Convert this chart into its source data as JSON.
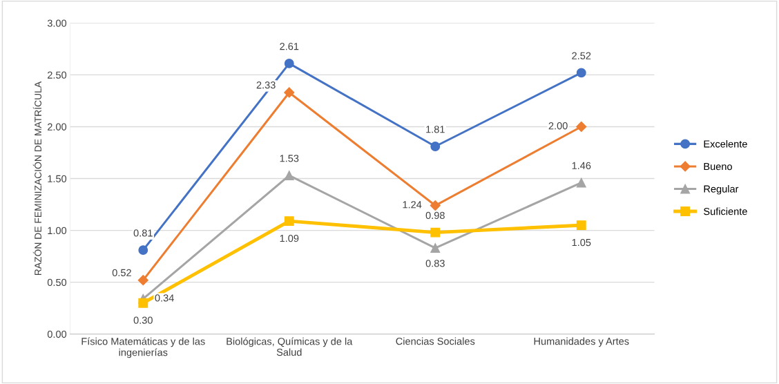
{
  "chart_data": {
    "type": "line",
    "ylabel": "RAZÓN DE FEMINIZACIÓN DE MATRÍCULA",
    "categories": [
      "Físico Matemáticas y de las ingenierías",
      "Biológicas, Químicas y de la Salud",
      "Ciencias Sociales",
      "Humanidades y Artes"
    ],
    "series": [
      {
        "name": "Excelente",
        "color": "#4472c4",
        "marker": "circle",
        "values": [
          0.81,
          2.61,
          1.81,
          2.52
        ],
        "value_labels": [
          "0.81",
          "2.61",
          "1.81",
          "2.52"
        ]
      },
      {
        "name": "Bueno",
        "color": "#ed7d31",
        "marker": "diamond",
        "values": [
          0.52,
          2.33,
          1.24,
          2.0
        ],
        "value_labels": [
          "0.52",
          "2.33",
          "1.24",
          "2.00"
        ]
      },
      {
        "name": "Regular",
        "color": "#a5a5a5",
        "marker": "triangle",
        "values": [
          0.34,
          1.53,
          0.83,
          1.46
        ],
        "value_labels": [
          "0.34",
          "1.53",
          "0.83",
          "1.46"
        ]
      },
      {
        "name": "Suficiente",
        "color": "#ffc000",
        "marker": "square",
        "values": [
          0.3,
          1.09,
          0.98,
          1.05
        ],
        "value_labels": [
          "0.30",
          "1.09",
          "0.98",
          "1.05"
        ]
      }
    ],
    "ylim": [
      0,
      3
    ],
    "yticks": [
      {
        "value": 0,
        "label": "0.00"
      },
      {
        "value": 0.5,
        "label": "0.50"
      },
      {
        "value": 1,
        "label": "1.00"
      },
      {
        "value": 1.5,
        "label": "1.50"
      },
      {
        "value": 2,
        "label": "2.00"
      },
      {
        "value": 2.5,
        "label": "2.50"
      },
      {
        "value": 3,
        "label": "3.00"
      }
    ],
    "grid": "y",
    "legend": "right",
    "line_style": "solid"
  }
}
